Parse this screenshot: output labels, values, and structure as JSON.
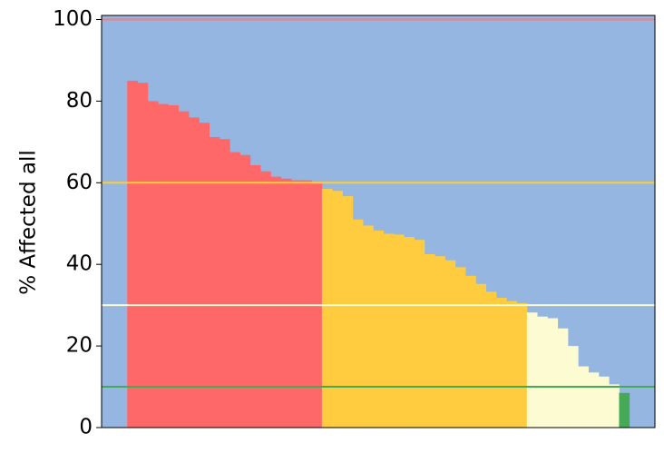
{
  "chart_data": {
    "type": "bar",
    "ylabel": "% Affected all",
    "ylim": [
      0,
      101
    ],
    "yticks": [
      0,
      20,
      40,
      60,
      80,
      100
    ],
    "background": "#96b6e2",
    "series": [
      {
        "color": "#ff6868",
        "values": [
          85,
          84.5,
          80,
          79.3,
          79,
          77.5,
          76,
          74.7,
          71.2,
          70.7,
          67.5,
          66.8,
          64.3,
          62.8,
          61.5,
          61,
          60.6,
          60.6,
          60.2
        ]
      },
      {
        "color": "#ffcc3f",
        "values": [
          58.5,
          58,
          56.7,
          51,
          49.5,
          48.3,
          47.5,
          47.3,
          46.7,
          46,
          42.5,
          42,
          41,
          39.3,
          37.2,
          35.2,
          33.3,
          31.8,
          31,
          30.5
        ]
      },
      {
        "color": "#fcfbd2",
        "values": [
          28.2,
          27.2,
          26.8,
          24.3,
          20,
          15,
          13.5,
          12.5,
          10.6
        ]
      },
      {
        "color": "#44aa55",
        "values": [
          8.5
        ]
      }
    ],
    "hlines": [
      {
        "value": 100,
        "color": "#f47c7c"
      },
      {
        "value": 60,
        "color": "#ffcc33"
      },
      {
        "value": 30,
        "color": "#fbfbd2"
      },
      {
        "value": 10,
        "color": "#44aa55"
      }
    ]
  }
}
